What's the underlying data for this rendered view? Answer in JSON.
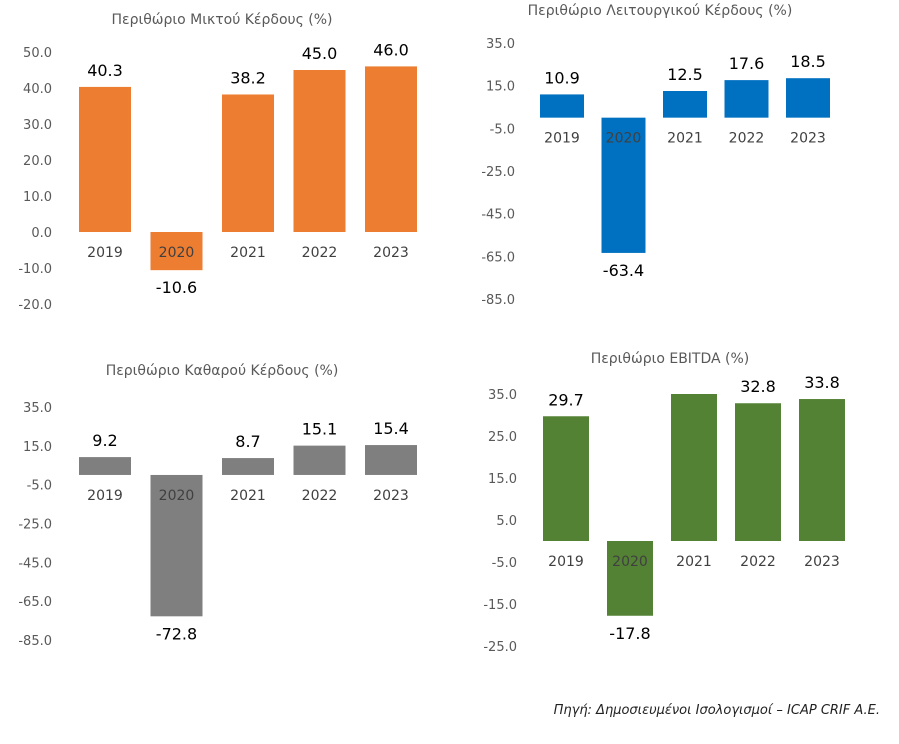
{
  "chart_data": [
    {
      "type": "bar",
      "title": "Περιθώριο Μικτού Κέρδους (%)",
      "categories": [
        "2019",
        "2020",
        "2021",
        "2022",
        "2023"
      ],
      "values": [
        40.3,
        -10.6,
        38.2,
        45.0,
        46.0
      ],
      "value_labels": [
        "40.3",
        "-10.6",
        "38.2",
        "45.0",
        "46.0"
      ],
      "yticks": [
        "50.0",
        "40.0",
        "30.0",
        "20.0",
        "10.0",
        "0.0",
        "-10.0",
        "-20.0"
      ],
      "ylim": [
        -20,
        50
      ],
      "color": "#ED7D31",
      "grid": false
    },
    {
      "type": "bar",
      "title": "Περιθώριο Λειτουργικού Κέρδους (%)",
      "categories": [
        "2019",
        "2020",
        "2021",
        "2022",
        "2023"
      ],
      "values": [
        10.9,
        -63.4,
        12.5,
        17.6,
        18.5
      ],
      "value_labels": [
        "10.9",
        "-63.4",
        "12.5",
        "17.6",
        "18.5"
      ],
      "yticks": [
        "35.0",
        "15.0",
        "-5.0",
        "-25.0",
        "-45.0",
        "-65.0",
        "-85.0"
      ],
      "ylim": [
        -85,
        35
      ],
      "color": "#0070C0",
      "grid": false
    },
    {
      "type": "bar",
      "title": "Περιθώριο Καθαρού Κέρδους (%)",
      "categories": [
        "2019",
        "2020",
        "2021",
        "2022",
        "2023"
      ],
      "values": [
        9.2,
        -72.8,
        8.7,
        15.1,
        15.4
      ],
      "value_labels": [
        "9.2",
        "-72.8",
        "8.7",
        "15.1",
        "15.4"
      ],
      "yticks": [
        "35.0",
        "15.0",
        "-5.0",
        "-25.0",
        "-45.0",
        "-65.0",
        "-85.0"
      ],
      "ylim": [
        -85,
        35
      ],
      "color": "#7F7F7F",
      "grid": false
    },
    {
      "type": "bar",
      "title": "Περιθώριο EBITDA (%)",
      "categories": [
        "2019",
        "2020",
        "2021",
        "2022",
        "2023"
      ],
      "values": [
        29.7,
        -17.8,
        35.0,
        32.8,
        33.8
      ],
      "value_labels": [
        "29.7",
        "-17.8",
        "",
        "32.8",
        "33.8"
      ],
      "yticks": [
        "35.0",
        "25.0",
        "15.0",
        "5.0",
        "-5.0",
        "-15.0",
        "-25.0"
      ],
      "ylim": [
        -25,
        35
      ],
      "color": "#548235",
      "grid": false
    }
  ],
  "source": "Πηγή: Δημοσιευμένοι Ισολογισμοί – ICAP CRIF A.E."
}
